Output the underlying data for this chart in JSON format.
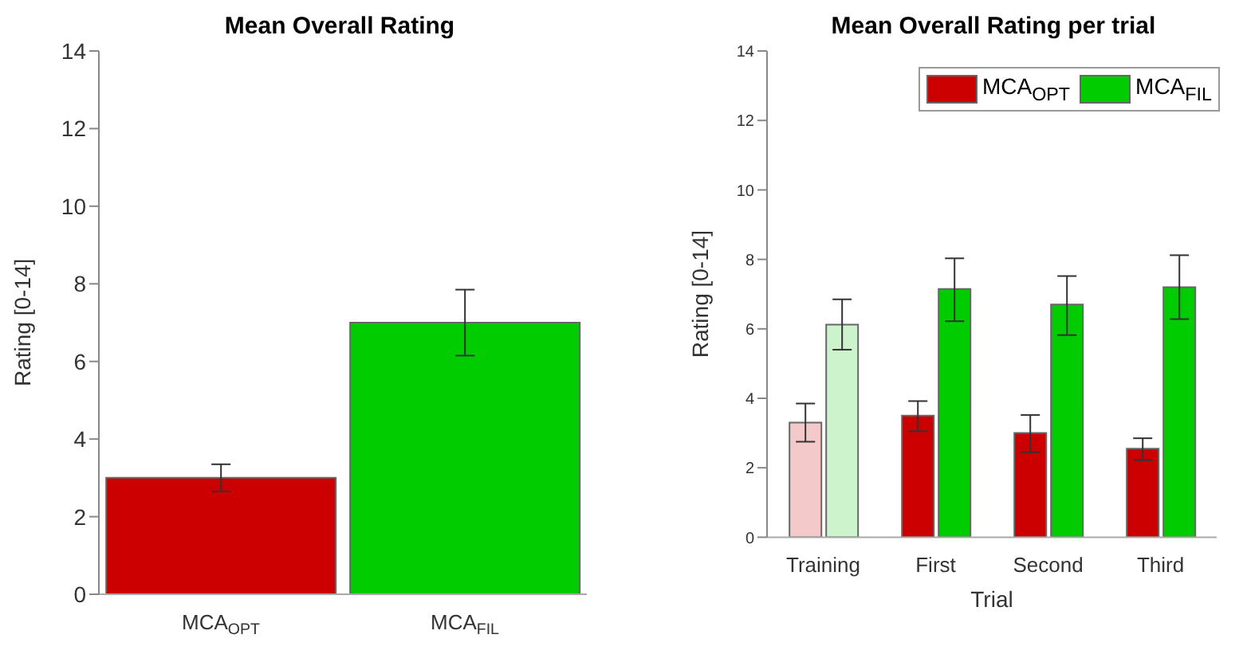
{
  "chart_data": [
    {
      "type": "bar",
      "title": "Mean Overall Rating",
      "ylabel": "Rating [0-14]",
      "categories": [
        "MCA$_{OPT}$",
        "MCA$_{FIL}$"
      ],
      "values": [
        3.0,
        7.0
      ],
      "colors": [
        "#cc0000",
        "#00cc00"
      ],
      "errors": [
        0.35,
        0.85
      ],
      "ylim": [
        0,
        14
      ],
      "yticks": [
        0,
        2,
        4,
        6,
        8,
        10,
        12,
        14
      ],
      "grid": false,
      "legend": false
    },
    {
      "type": "bar",
      "title": "Mean Overall Rating per trial",
      "xlabel": "Trial",
      "ylabel": "Rating [0-14]",
      "categories": [
        "Training",
        "First",
        "Second",
        "Third"
      ],
      "series": [
        {
          "name": "MCA$_{OPT}$",
          "color": "#cc0000",
          "colors": [
            "#f3c9c9",
            "#cc0000",
            "#cc0000",
            "#cc0000"
          ],
          "values": [
            3.3,
            3.5,
            3.0,
            2.55
          ],
          "errors": [
            [
              2.75,
              3.85
            ],
            [
              3.05,
              3.92
            ],
            [
              2.45,
              3.52
            ],
            [
              2.22,
              2.85
            ]
          ]
        },
        {
          "name": "MCA$_{FIL}$",
          "color": "#00cc00",
          "colors": [
            "#ccf3cc",
            "#00cc00",
            "#00cc00",
            "#00cc00"
          ],
          "values": [
            6.12,
            7.15,
            6.7,
            7.2
          ],
          "errors": [
            [
              5.4,
              6.85
            ],
            [
              6.22,
              8.03
            ],
            [
              5.82,
              7.52
            ],
            [
              6.28,
              8.12
            ]
          ]
        }
      ],
      "ylim": [
        0,
        14
      ],
      "yticks": [
        0,
        2,
        4,
        6,
        8,
        10,
        12,
        14
      ],
      "grid": false,
      "legend": "top right"
    }
  ]
}
